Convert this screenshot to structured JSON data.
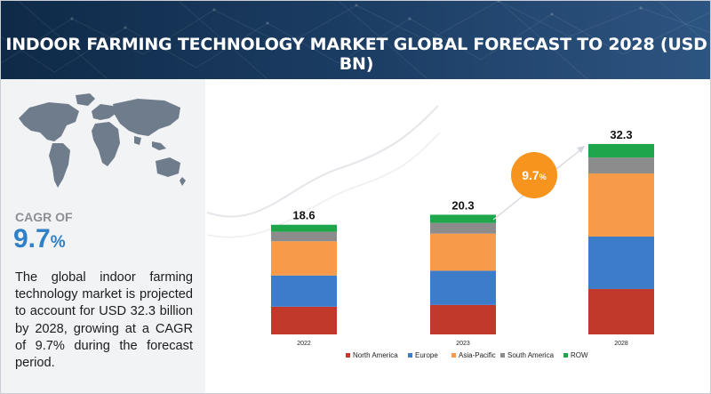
{
  "title": "INDOOR FARMING TECHNOLOGY MARKET GLOBAL FORECAST TO 2028 (USD BN)",
  "sidebar": {
    "cagr_label": "CAGR OF",
    "cagr_number": "9.7",
    "cagr_percent_sign": "%",
    "description": "The global indoor farming technology market is projected to account for USD 32.3 billion by 2028, growing at a CAGR of 9.7% during the forecast period."
  },
  "colors": {
    "header": "#0f2a48",
    "accent": "#2f80c7",
    "cagr_bubble": "#f7941d"
  },
  "chart_data": {
    "type": "bar",
    "stacked": true,
    "categories": [
      "2022",
      "2023",
      "2028"
    ],
    "totals": [
      "18.6",
      "20.3",
      "32.3"
    ],
    "series": [
      {
        "name": "North America",
        "color": "#c0392b",
        "values": [
          4.7,
          5.0,
          7.7
        ]
      },
      {
        "name": "Europe",
        "color": "#3d7cc9",
        "values": [
          5.3,
          5.8,
          8.9
        ]
      },
      {
        "name": "Asia-Pacific",
        "color": "#f79a4a",
        "values": [
          5.8,
          6.3,
          10.7
        ]
      },
      {
        "name": "South America",
        "color": "#8c8c8c",
        "values": [
          1.6,
          1.8,
          2.7
        ]
      },
      {
        "name": "ROW",
        "color": "#1fa64a",
        "values": [
          1.2,
          1.4,
          2.3
        ]
      }
    ],
    "cagr_annotation": "9.7%",
    "legend_position": "bottom",
    "grid": false,
    "ylim": [
      0,
      35
    ]
  }
}
